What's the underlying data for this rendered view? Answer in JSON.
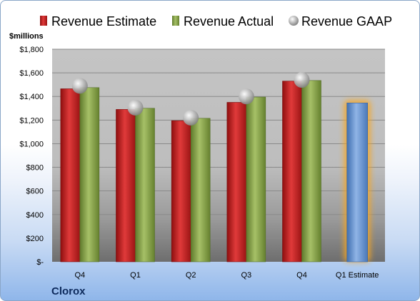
{
  "chart_data": {
    "type": "bar",
    "unit_label": "$millions",
    "company": "Clorox",
    "categories": [
      "Q4",
      "Q1",
      "Q2",
      "Q3",
      "Q4",
      "Q1 Estimate"
    ],
    "series": [
      {
        "name": "Revenue Estimate",
        "values": [
          1465,
          1290,
          1195,
          1350,
          1530,
          null
        ],
        "color": "#d42a2a"
      },
      {
        "name": "Revenue Actual",
        "values": [
          1475,
          1300,
          1215,
          1395,
          1535,
          null
        ],
        "color": "#8fab4f"
      },
      {
        "name": "Revenue GAAP",
        "values": [
          1490,
          1305,
          1220,
          1400,
          1540,
          null
        ],
        "color": "#b0b0b0",
        "marker": "sphere"
      }
    ],
    "estimate_bar": {
      "category": "Q1 Estimate",
      "value": 1345,
      "color": "#6f9bd6",
      "glow": "#f5a623"
    },
    "y_ticks": [
      "$-",
      "$200",
      "$400",
      "$600",
      "$800",
      "$1,000",
      "$1,200",
      "$1,400",
      "$1,600",
      "$1,800"
    ],
    "ylim": [
      0,
      1800
    ],
    "grid": true,
    "legend_position": "top"
  }
}
